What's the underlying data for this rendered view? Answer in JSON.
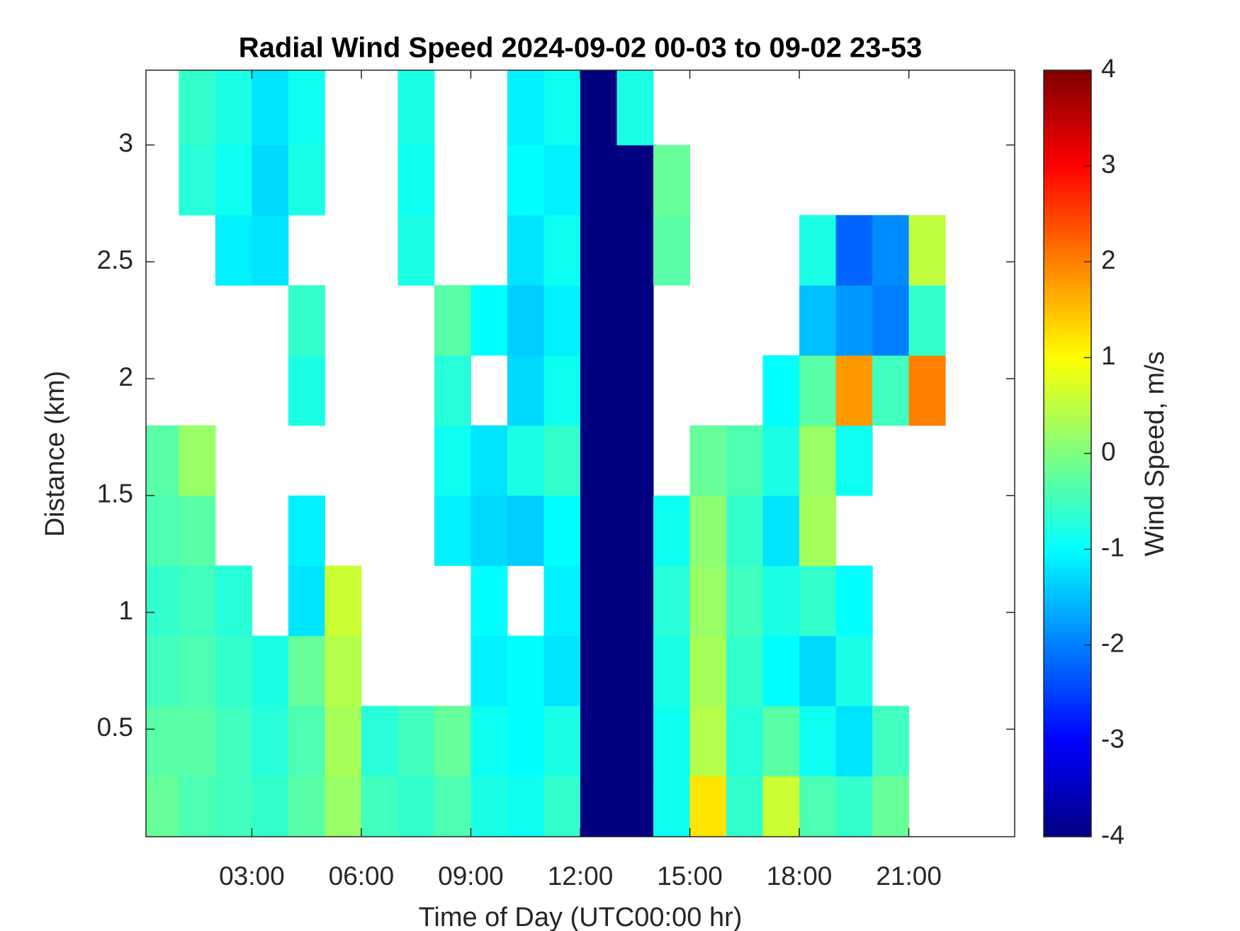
{
  "chart_data": {
    "type": "heatmap",
    "title": "Radial Wind Speed 2024-09-02 00-03 to 09-02 23-53",
    "x_label": "Time of Day (UTC00:00 hr)",
    "y_label": "Distance (km)",
    "colorbar_label": "Wind Speed, m/s",
    "colormap": "jet",
    "xlim": [
      0.1,
      23.9
    ],
    "ylim": [
      0.04,
      3.32
    ],
    "clim": [
      -4,
      4
    ],
    "xticks": [
      {
        "value": 3,
        "label": "03:00"
      },
      {
        "value": 6,
        "label": "06:00"
      },
      {
        "value": 9,
        "label": "09:00"
      },
      {
        "value": 12,
        "label": "12:00"
      },
      {
        "value": 15,
        "label": "15:00"
      },
      {
        "value": 18,
        "label": "18:00"
      },
      {
        "value": 21,
        "label": "21:00"
      }
    ],
    "yticks": [
      0.5,
      1,
      1.5,
      2,
      2.5,
      3
    ],
    "cticks": [
      -4,
      -3,
      -2,
      -1,
      0,
      1,
      2,
      3,
      4
    ],
    "x_bins": [
      0.1,
      1,
      2,
      3,
      4,
      5,
      6,
      7,
      8,
      9,
      10,
      11,
      12,
      13,
      14,
      15,
      16,
      17,
      18,
      19,
      20,
      21,
      22,
      23,
      23.9
    ],
    "y_bins": [
      0.04,
      0.3,
      0.6,
      0.9,
      1.2,
      1.5,
      1.8,
      2.1,
      2.4,
      2.7,
      3.0,
      3.32
    ],
    "z": [
      [
        -0.2,
        -0.4,
        -0.5,
        -0.6,
        -0.3,
        0.2,
        -0.5,
        -0.6,
        -0.4,
        -0.8,
        -0.9,
        -0.6,
        -4,
        -4,
        -0.9,
        1.2,
        -0.6,
        0.6,
        -0.4,
        -0.6,
        -0.2,
        null,
        null,
        null
      ],
      [
        -0.3,
        -0.3,
        -0.5,
        -0.7,
        -0.4,
        0.3,
        -0.7,
        -0.5,
        -0.2,
        -0.9,
        -1.0,
        -0.8,
        -4,
        -4,
        -0.9,
        0.4,
        -0.7,
        -0.3,
        -0.9,
        -1.2,
        -0.5,
        null,
        null,
        null
      ],
      [
        -0.5,
        -0.4,
        -0.6,
        -0.8,
        -0.2,
        0.4,
        null,
        null,
        null,
        -1.1,
        -1.0,
        -1.2,
        -4,
        -4,
        -0.8,
        0.3,
        -0.6,
        -1.0,
        -1.3,
        -0.8,
        null,
        null,
        null,
        null
      ],
      [
        -0.6,
        -0.5,
        -0.7,
        null,
        -1.2,
        0.6,
        null,
        null,
        null,
        -1.0,
        null,
        -1.1,
        -4,
        -4,
        -0.7,
        0.2,
        -0.5,
        -0.8,
        -0.6,
        -1.0,
        null,
        null,
        null,
        null
      ],
      [
        -0.4,
        -0.3,
        null,
        null,
        -1.1,
        null,
        null,
        null,
        -1.1,
        -1.3,
        -1.4,
        -1.0,
        -4,
        -4,
        -0.9,
        0.1,
        -0.6,
        -1.2,
        0.3,
        null,
        null,
        null,
        null,
        null
      ],
      [
        -0.3,
        0.2,
        null,
        null,
        null,
        null,
        null,
        null,
        -0.9,
        -1.2,
        -0.8,
        -0.6,
        -4,
        -4,
        null,
        -0.2,
        -0.4,
        -0.8,
        0.2,
        -0.9,
        null,
        null,
        null,
        null
      ],
      [
        null,
        null,
        null,
        null,
        -0.8,
        null,
        null,
        null,
        -0.7,
        null,
        -1.3,
        -0.9,
        -4,
        -4,
        null,
        null,
        null,
        -1.0,
        -0.3,
        1.8,
        -0.5,
        2.0,
        null,
        null
      ],
      [
        null,
        null,
        null,
        null,
        -0.6,
        null,
        null,
        null,
        -0.3,
        -1.0,
        -1.4,
        -1.1,
        -4,
        -4,
        null,
        null,
        null,
        null,
        -1.5,
        -1.8,
        -2.0,
        -0.6,
        null,
        null
      ],
      [
        null,
        null,
        -1.1,
        -1.2,
        null,
        null,
        null,
        -0.8,
        null,
        null,
        -1.2,
        -0.9,
        -4,
        -4,
        -0.3,
        null,
        null,
        null,
        -0.8,
        -2.2,
        -1.9,
        0.5,
        null,
        null
      ],
      [
        null,
        -0.7,
        -0.9,
        -1.3,
        -0.8,
        null,
        null,
        -0.9,
        null,
        null,
        -1.0,
        -1.1,
        -4,
        -4,
        -0.2,
        null,
        null,
        null,
        null,
        null,
        null,
        null,
        null,
        null
      ],
      [
        null,
        -0.6,
        -0.8,
        -1.2,
        -0.9,
        null,
        null,
        -0.8,
        null,
        null,
        -1.1,
        -0.9,
        -4,
        -0.8,
        null,
        null,
        null,
        null,
        null,
        null,
        null,
        null,
        null,
        null
      ]
    ]
  }
}
